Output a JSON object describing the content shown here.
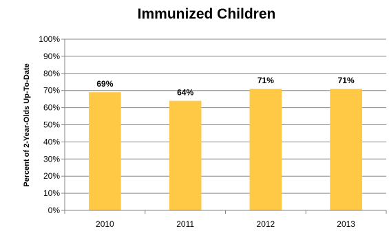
{
  "chart_data": {
    "type": "bar",
    "title": "Immunized Children",
    "xlabel": "",
    "ylabel": "Percent of 2-Year-Olds Up-To-Date",
    "categories": [
      "2010",
      "2011",
      "2012",
      "2013"
    ],
    "values": [
      69,
      64,
      71,
      71
    ],
    "data_labels": [
      "69%",
      "64%",
      "71%",
      "71%"
    ],
    "ylim": [
      0,
      100
    ],
    "y_ticks": [
      "0%",
      "10%",
      "20%",
      "30%",
      "40%",
      "50%",
      "60%",
      "70%",
      "80%",
      "90%",
      "100%"
    ],
    "grid": true,
    "legend": "none",
    "bar_color": "#FFC845",
    "grid_color": "#868686"
  }
}
